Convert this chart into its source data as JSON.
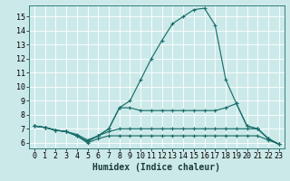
{
  "xlabel": "Humidex (Indice chaleur)",
  "ylabel": "",
  "xlim": [
    -0.5,
    23.5
  ],
  "ylim": [
    5.6,
    15.8
  ],
  "bg_color": "#cce9e9",
  "line_color": "#1a6e6a",
  "grid_color": "#b8d8d8",
  "lines": [
    {
      "x": [
        0,
        1,
        2,
        3,
        4,
        5,
        6,
        7,
        8,
        9,
        10,
        11,
        12,
        13,
        14,
        15,
        16,
        17,
        18,
        19,
        20,
        21,
        22,
        23
      ],
      "y": [
        7.2,
        7.1,
        6.9,
        6.8,
        6.5,
        6.0,
        6.3,
        6.5,
        6.5,
        6.5,
        6.5,
        6.5,
        6.5,
        6.5,
        6.5,
        6.5,
        6.5,
        6.5,
        6.5,
        6.5,
        6.5,
        6.5,
        6.2,
        5.9
      ]
    },
    {
      "x": [
        0,
        1,
        2,
        3,
        4,
        5,
        6,
        7,
        8,
        9,
        10,
        11,
        12,
        13,
        14,
        15,
        16,
        17,
        18,
        19,
        20,
        21,
        22,
        23
      ],
      "y": [
        7.2,
        7.1,
        6.9,
        6.8,
        6.6,
        6.2,
        6.5,
        6.8,
        7.0,
        7.0,
        7.0,
        7.0,
        7.0,
        7.0,
        7.0,
        7.0,
        7.0,
        7.0,
        7.0,
        7.0,
        7.0,
        7.0,
        6.3,
        5.9
      ]
    },
    {
      "x": [
        0,
        1,
        2,
        3,
        4,
        5,
        6,
        7,
        8,
        9,
        10,
        11,
        12,
        13,
        14,
        15,
        16,
        17,
        18,
        19,
        20,
        21,
        22,
        23
      ],
      "y": [
        7.2,
        7.1,
        6.9,
        6.8,
        6.5,
        6.1,
        6.5,
        7.0,
        8.5,
        8.5,
        8.3,
        8.3,
        8.3,
        8.3,
        8.3,
        8.3,
        8.3,
        8.3,
        8.5,
        8.8,
        7.2,
        7.0,
        6.3,
        5.9
      ]
    },
    {
      "x": [
        0,
        1,
        2,
        3,
        4,
        5,
        6,
        7,
        8,
        9,
        10,
        11,
        12,
        13,
        14,
        15,
        16,
        17,
        18,
        19,
        20,
        21,
        22,
        23
      ],
      "y": [
        7.2,
        7.1,
        6.9,
        6.8,
        6.5,
        6.1,
        6.5,
        7.0,
        8.5,
        9.0,
        10.5,
        12.0,
        13.3,
        14.5,
        15.0,
        15.5,
        15.6,
        14.4,
        10.5,
        8.8,
        7.2,
        7.0,
        6.3,
        5.9
      ]
    }
  ],
  "xticks": [
    0,
    1,
    2,
    3,
    4,
    5,
    6,
    7,
    8,
    9,
    10,
    11,
    12,
    13,
    14,
    15,
    16,
    17,
    18,
    19,
    20,
    21,
    22,
    23
  ],
  "yticks": [
    6,
    7,
    8,
    9,
    10,
    11,
    12,
    13,
    14,
    15
  ],
  "xlabel_fontsize": 7,
  "tick_fontsize": 6
}
